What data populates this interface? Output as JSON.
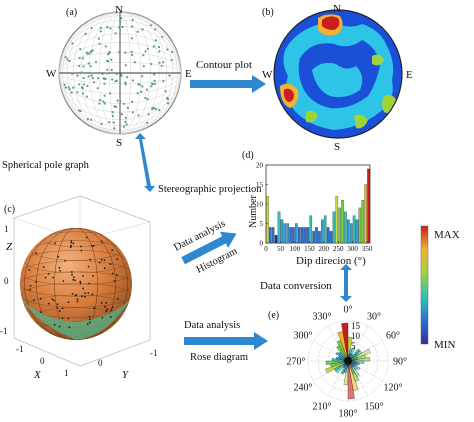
{
  "panels": {
    "a": "(a)",
    "b": "(b)",
    "c": "(c)",
    "d": "(d)",
    "e": "(e)"
  },
  "compass": {
    "n": "N",
    "s": "S",
    "e": "E",
    "w": "W"
  },
  "arrows": {
    "contour": "Contour plot",
    "pole_graph": "Spherical pole graph",
    "stereo": "Stereographic projection",
    "analysis1": "Data analysis",
    "histogram": "Histogram",
    "conversion": "Data conversion",
    "analysis2": "Data analysis",
    "rose": "Rose diagram"
  },
  "sphere_axes": {
    "z": "Z",
    "x": "X",
    "y": "Y",
    "z_ticks": [
      "1",
      "0",
      "-1"
    ],
    "x_ticks": [
      "-1",
      "0",
      "1"
    ],
    "y_ticks": [
      "0",
      "-1"
    ]
  },
  "colorbar": {
    "max": "MAX",
    "min": "MIN"
  },
  "rose": {
    "radial_ticks": [
      "15",
      "10",
      "5"
    ],
    "angles": [
      "0°",
      "30°",
      "60°",
      "90°",
      "120°",
      "150°",
      "180°",
      "210°",
      "240°",
      "270°",
      "300°",
      "330°"
    ]
  },
  "chart_data": {
    "type": "bar",
    "title": "",
    "xlabel": "Dip direcion (°)",
    "ylabel": "Number",
    "xlim": [
      0,
      360
    ],
    "ylim": [
      0,
      20
    ],
    "xticks": [
      "0",
      "50",
      "100",
      "150",
      "200",
      "250",
      "300",
      "350"
    ],
    "yticks": [
      "0",
      "5",
      "10",
      "15",
      "20"
    ],
    "bin_width": 10,
    "x": [
      5,
      15,
      25,
      35,
      45,
      55,
      65,
      75,
      85,
      95,
      105,
      115,
      125,
      135,
      145,
      155,
      165,
      175,
      185,
      195,
      205,
      215,
      225,
      235,
      245,
      255,
      265,
      275,
      285,
      295,
      305,
      315,
      325,
      335,
      345,
      355
    ],
    "values": [
      12,
      4,
      4,
      2,
      8,
      6,
      5,
      5,
      4,
      4,
      5,
      4,
      4,
      4,
      4,
      7,
      3,
      4,
      3,
      6,
      7,
      4,
      3,
      8,
      12,
      9,
      11,
      8,
      6,
      5,
      7,
      6,
      9,
      11,
      15,
      19
    ],
    "grid": false
  },
  "colors": {
    "arrow": "#2f88cf",
    "low": "#3b3bb0",
    "high": "#c81e1e"
  }
}
